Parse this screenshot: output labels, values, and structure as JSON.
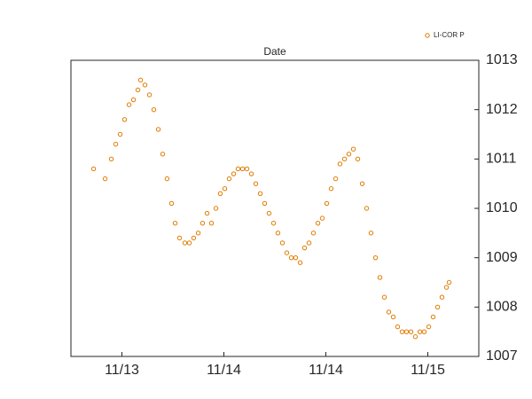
{
  "chart_data": {
    "type": "scatter",
    "title": "Date",
    "x": [
      -0.278,
      -0.165,
      -0.104,
      -0.061,
      -0.017,
      0.026,
      0.07,
      0.113,
      0.157,
      0.183,
      0.226,
      0.27,
      0.313,
      0.357,
      0.4,
      0.443,
      0.487,
      0.522,
      0.565,
      0.617,
      0.661,
      0.704,
      0.748,
      0.791,
      0.835,
      0.878,
      0.922,
      0.965,
      1.009,
      1.052,
      1.096,
      1.139,
      1.183,
      1.226,
      1.27,
      1.313,
      1.357,
      1.4,
      1.443,
      1.487,
      1.53,
      1.574,
      1.617,
      1.661,
      1.704,
      1.748,
      1.791,
      1.835,
      1.878,
      1.922,
      1.965,
      2.009,
      2.052,
      2.096,
      2.139,
      2.183,
      2.226,
      2.27,
      2.313,
      2.357,
      2.4,
      2.443,
      2.487,
      2.53,
      2.574,
      2.617,
      2.661,
      2.704,
      2.748,
      2.791,
      2.835,
      2.878,
      2.922,
      2.965,
      3.009,
      3.052,
      3.096,
      3.139,
      3.183,
      3.209
    ],
    "series": [
      {
        "name": "LI-COR P",
        "color": "#e07b00",
        "values": [
          1010.8,
          1010.6,
          1011.0,
          1011.3,
          1011.5,
          1011.8,
          1012.1,
          1012.2,
          1012.4,
          1012.6,
          1012.5,
          1012.3,
          1012.0,
          1011.6,
          1011.1,
          1010.6,
          1010.1,
          1009.7,
          1009.4,
          1009.3,
          1009.3,
          1009.4,
          1009.5,
          1009.7,
          1009.9,
          1009.7,
          1010.0,
          1010.3,
          1010.4,
          1010.6,
          1010.7,
          1010.8,
          1010.8,
          1010.8,
          1010.7,
          1010.5,
          1010.3,
          1010.1,
          1009.9,
          1009.7,
          1009.5,
          1009.3,
          1009.1,
          1009.0,
          1009.0,
          1008.9,
          1009.2,
          1009.3,
          1009.5,
          1009.7,
          1009.8,
          1010.1,
          1010.4,
          1010.6,
          1010.9,
          1011.0,
          1011.1,
          1011.2,
          1011.0,
          1010.5,
          1010.0,
          1009.5,
          1009.0,
          1008.6,
          1008.2,
          1007.9,
          1007.8,
          1007.6,
          1007.5,
          1007.5,
          1007.5,
          1007.4,
          1007.5,
          1007.5,
          1007.6,
          1007.8,
          1008.0,
          1008.2,
          1008.4,
          1008.5
        ]
      }
    ],
    "xlim": [
      -0.5,
      3.5
    ],
    "xticks": [
      {
        "value": 0,
        "label": "11/13"
      },
      {
        "value": 1,
        "label": "11/14"
      },
      {
        "value": 2,
        "label": "11/14"
      },
      {
        "value": 3,
        "label": "11/15"
      }
    ],
    "ylim": [
      1007,
      1013
    ],
    "yticks": [
      1007,
      1008,
      1009,
      1010,
      1011,
      1012,
      1013
    ],
    "grid": false,
    "legend": "top-right"
  }
}
